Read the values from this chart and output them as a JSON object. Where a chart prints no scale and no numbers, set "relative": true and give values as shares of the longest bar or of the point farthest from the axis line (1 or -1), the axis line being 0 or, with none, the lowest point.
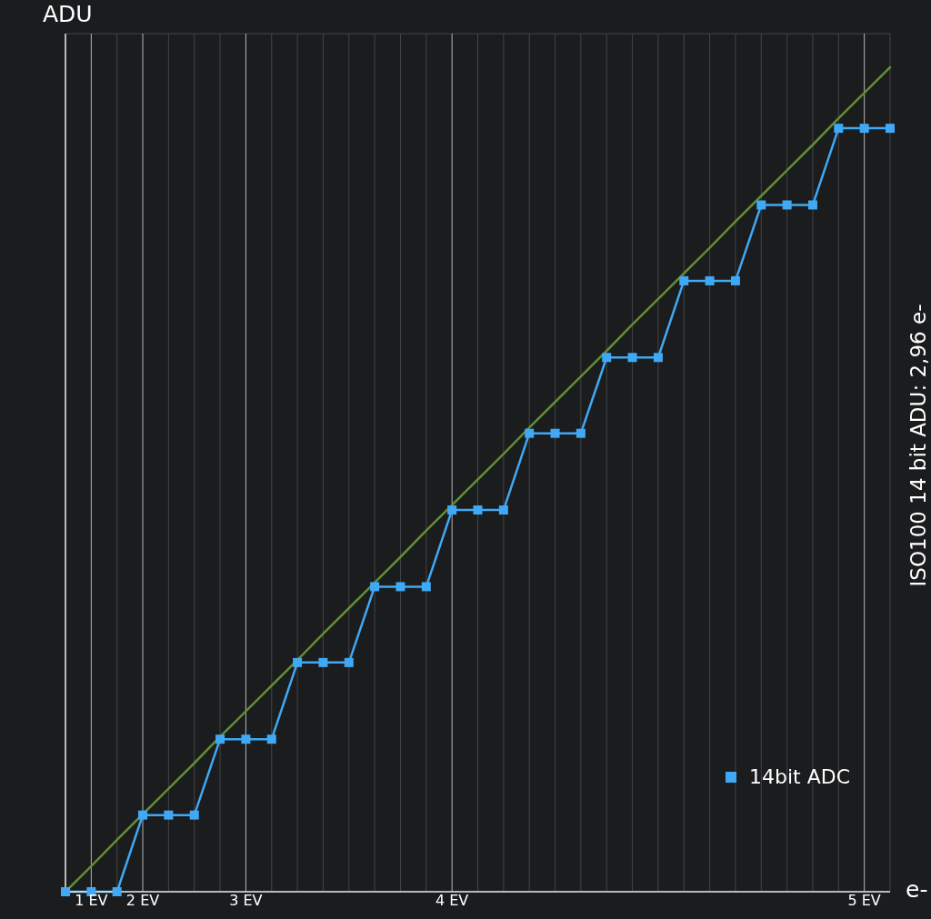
{
  "chart_data": {
    "type": "line",
    "ylabel": "ADU",
    "xlabel": "e-",
    "y2label": "ISO100 14 bit ADU: 2,96 e-",
    "relative": true,
    "grid": true,
    "legend": "bottom right",
    "marker": "square",
    "categories": [
      null,
      "1 EV",
      null,
      "2 EV",
      null,
      null,
      null,
      "3 EV",
      null,
      null,
      null,
      null,
      null,
      null,
      null,
      "4 EV",
      null,
      null,
      null,
      null,
      null,
      null,
      null,
      null,
      null,
      null,
      null,
      null,
      null,
      null,
      null,
      "5 EV",
      null
    ],
    "series": [
      {
        "name": "14bit ADC",
        "color": "#3fa9f5",
        "values": [
          0,
          0,
          0,
          0.093,
          0.093,
          0.093,
          0.185,
          0.185,
          0.185,
          0.278,
          0.278,
          0.278,
          0.37,
          0.37,
          0.37,
          0.463,
          0.463,
          0.463,
          0.556,
          0.556,
          0.556,
          0.648,
          0.648,
          0.648,
          0.741,
          0.741,
          0.741,
          0.833,
          0.833,
          0.833,
          0.926,
          0.926,
          0.926
        ]
      },
      {
        "type": "line",
        "color": "#5e8e34",
        "marker": "none",
        "values": [
          0,
          0.031,
          0.063,
          0.094,
          0.125,
          0.156,
          0.188,
          0.219,
          0.25,
          0.281,
          0.313,
          0.344,
          0.375,
          0.406,
          0.438,
          0.469,
          0.5,
          0.531,
          0.563,
          0.594,
          0.625,
          0.656,
          0.688,
          0.719,
          0.75,
          0.781,
          0.813,
          0.844,
          0.875,
          0.906,
          0.938,
          0.969,
          1
        ]
      }
    ]
  }
}
